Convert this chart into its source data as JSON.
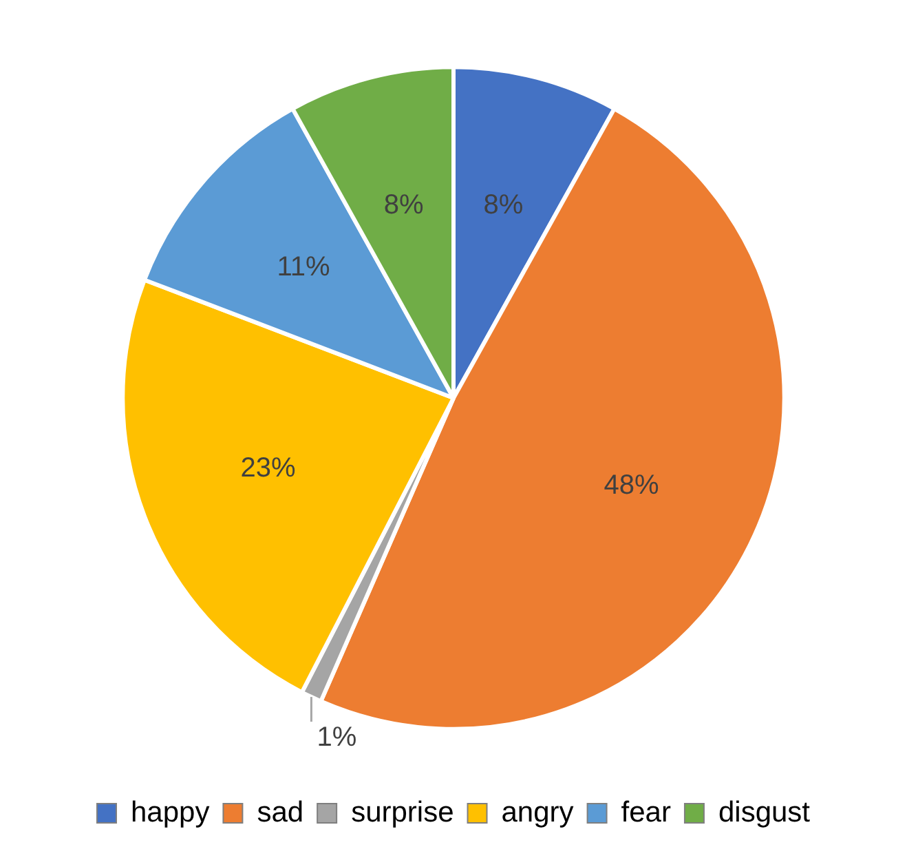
{
  "chart_data": {
    "type": "pie",
    "categories": [
      "happy",
      "sad",
      "surprise",
      "angry",
      "fear",
      "disgust"
    ],
    "values": [
      8,
      48,
      1,
      23,
      11,
      8
    ],
    "colors": [
      "#4472c4",
      "#ed7d31",
      "#a5a5a5",
      "#ffc000",
      "#5b9bd5",
      "#70ad47"
    ],
    "value_labels": [
      "8%",
      "48%",
      "1%",
      "23%",
      "11%",
      "8%"
    ],
    "legend": "bottom"
  }
}
